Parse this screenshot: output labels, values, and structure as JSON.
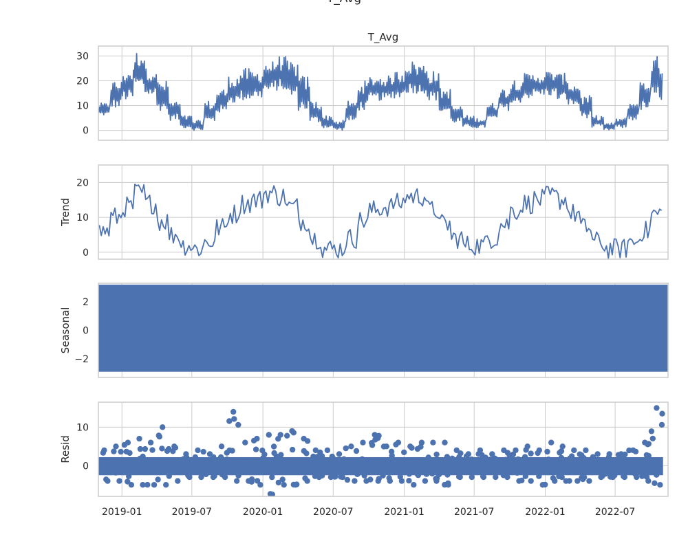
{
  "figure": {
    "suptitle": "T_Avg",
    "axes_title": "T_Avg"
  },
  "chart_data": [
    {
      "type": "line",
      "panel": "observed",
      "title": "T_Avg",
      "ylabel": "",
      "ylim": [
        -4,
        34
      ],
      "yticks": [
        0,
        10,
        20,
        30
      ],
      "color": "#4c72b0",
      "grid": true,
      "series": [
        {
          "values_by_month": [
            [
              "2018-11",
              6,
              11
            ],
            [
              "2018-12",
              9,
              20
            ],
            [
              "2019-01",
              12,
              25
            ],
            [
              "2019-02",
              17,
              32
            ],
            [
              "2019-03",
              14,
              25
            ],
            [
              "2019-04",
              8,
              20
            ],
            [
              "2019-05",
              4,
              12
            ],
            [
              "2019-06",
              1,
              6
            ],
            [
              "2019-07",
              0,
              4
            ],
            [
              "2019-08",
              3,
              12
            ],
            [
              "2019-09",
              7,
              17
            ],
            [
              "2019-10",
              11,
              22
            ],
            [
              "2019-11",
              12,
              25
            ],
            [
              "2019-12",
              13,
              24
            ],
            [
              "2020-01",
              15,
              28
            ],
            [
              "2020-02",
              16,
              30
            ],
            [
              "2020-03",
              13,
              28
            ],
            [
              "2020-04",
              8,
              22
            ],
            [
              "2020-05",
              3,
              12
            ],
            [
              "2020-06",
              1,
              6
            ],
            [
              "2020-07",
              0,
              4
            ],
            [
              "2020-08",
              3,
              12
            ],
            [
              "2020-09",
              8,
              20
            ],
            [
              "2020-10",
              12,
              22
            ],
            [
              "2020-11",
              12,
              22
            ],
            [
              "2020-12",
              13,
              24
            ],
            [
              "2021-01",
              15,
              28
            ],
            [
              "2021-02",
              15,
              27
            ],
            [
              "2021-03",
              12,
              24
            ],
            [
              "2021-04",
              7,
              17
            ],
            [
              "2021-05",
              3,
              10
            ],
            [
              "2021-06",
              1,
              6
            ],
            [
              "2021-07",
              1,
              5
            ],
            [
              "2021-08",
              4,
              11
            ],
            [
              "2021-09",
              8,
              17
            ],
            [
              "2021-10",
              10,
              21
            ],
            [
              "2021-11",
              13,
              23
            ],
            [
              "2021-12",
              14,
              23
            ],
            [
              "2022-01",
              14,
              24
            ],
            [
              "2022-02",
              12,
              23
            ],
            [
              "2022-03",
              10,
              19
            ],
            [
              "2022-04",
              5,
              14
            ],
            [
              "2022-05",
              1,
              6
            ],
            [
              "2022-06",
              0,
              3
            ],
            [
              "2022-07",
              1,
              5
            ],
            [
              "2022-08",
              4,
              12
            ],
            [
              "2022-09",
              8,
              20
            ],
            [
              "2022-10",
              12,
              30
            ]
          ]
        }
      ]
    },
    {
      "type": "line",
      "panel": "trend",
      "ylabel": "Trend",
      "ylim": [
        -2,
        25
      ],
      "yticks": [
        0,
        10,
        20
      ],
      "color": "#4c72b0",
      "grid": true,
      "series": [
        {
          "values_by_month": [
            [
              "2018-11",
              6
            ],
            [
              "2018-12",
              10
            ],
            [
              "2019-01",
              13
            ],
            [
              "2019-02",
              17
            ],
            [
              "2019-03",
              14
            ],
            [
              "2019-04",
              9
            ],
            [
              "2019-05",
              5
            ],
            [
              "2019-06",
              2
            ],
            [
              "2019-07",
              1
            ],
            [
              "2019-08",
              3
            ],
            [
              "2019-09",
              7
            ],
            [
              "2019-10",
              11
            ],
            [
              "2019-11",
              14
            ],
            [
              "2019-12",
              15
            ],
            [
              "2020-01",
              17
            ],
            [
              "2020-02",
              16
            ],
            [
              "2020-03",
              13
            ],
            [
              "2020-04",
              9
            ],
            [
              "2020-05",
              4
            ],
            [
              "2020-06",
              1
            ],
            [
              "2020-07",
              1
            ],
            [
              "2020-08",
              4
            ],
            [
              "2020-09",
              9
            ],
            [
              "2020-10",
              12
            ],
            [
              "2020-11",
              13
            ],
            [
              "2020-12",
              14
            ],
            [
              "2021-01",
              16
            ],
            [
              "2021-02",
              16
            ],
            [
              "2021-03",
              12
            ],
            [
              "2021-04",
              8
            ],
            [
              "2021-05",
              4
            ],
            [
              "2021-06",
              2
            ],
            [
              "2021-07",
              2
            ],
            [
              "2021-08",
              4
            ],
            [
              "2021-09",
              8
            ],
            [
              "2021-10",
              12
            ],
            [
              "2021-11",
              14
            ],
            [
              "2021-12",
              15
            ],
            [
              "2022-01",
              16
            ],
            [
              "2022-02",
              15
            ],
            [
              "2022-03",
              11
            ],
            [
              "2022-04",
              7
            ],
            [
              "2022-05",
              3
            ],
            [
              "2022-06",
              1
            ],
            [
              "2022-07",
              1
            ],
            [
              "2022-08",
              3
            ],
            [
              "2022-09",
              6
            ],
            [
              "2022-10",
              11
            ]
          ]
        }
      ]
    },
    {
      "type": "line",
      "panel": "seasonal",
      "ylabel": "Seasonal",
      "ylim": [
        -3.3,
        3.3
      ],
      "yticks": [
        -2,
        0,
        2
      ],
      "ytick_labels": [
        "−2",
        "0",
        "2"
      ],
      "color": "#4c72b0",
      "grid": true,
      "series": [
        {
          "amplitude_min": -2.9,
          "amplitude_max": 3.2
        }
      ]
    },
    {
      "type": "scatter",
      "panel": "resid",
      "ylabel": "Resid",
      "ylim": [
        -8,
        16.5
      ],
      "yticks": [
        0,
        10
      ],
      "color": "#4c72b0",
      "grid": true,
      "series": [
        {
          "envelope_by_month": [
            [
              "2018-11",
              -4,
              4
            ],
            [
              "2018-12",
              -4,
              5
            ],
            [
              "2019-01",
              -5,
              6
            ],
            [
              "2019-02",
              -5,
              7
            ],
            [
              "2019-03",
              -5,
              6
            ],
            [
              "2019-04",
              -5,
              10
            ],
            [
              "2019-05",
              -4,
              5
            ],
            [
              "2019-06",
              -3,
              3
            ],
            [
              "2019-07",
              -3,
              4
            ],
            [
              "2019-08",
              -3,
              3
            ],
            [
              "2019-09",
              -3,
              5
            ],
            [
              "2019-10",
              -4,
              14
            ],
            [
              "2019-11",
              -4,
              6
            ],
            [
              "2019-12",
              -5,
              7
            ],
            [
              "2020-01",
              -7.5,
              8
            ],
            [
              "2020-02",
              -5,
              8
            ],
            [
              "2020-03",
              -5,
              9
            ],
            [
              "2020-04",
              -4,
              7
            ],
            [
              "2020-05",
              -3,
              4
            ],
            [
              "2020-06",
              -3,
              4
            ],
            [
              "2020-07",
              -3,
              3
            ],
            [
              "2020-08",
              -4,
              5
            ],
            [
              "2020-09",
              -4,
              6
            ],
            [
              "2020-10",
              -4,
              8
            ],
            [
              "2020-11",
              -4,
              5
            ],
            [
              "2020-12",
              -4,
              6
            ],
            [
              "2021-01",
              -5,
              5
            ],
            [
              "2021-02",
              -4,
              6
            ],
            [
              "2021-03",
              -4,
              6
            ],
            [
              "2021-04",
              -5,
              6
            ],
            [
              "2021-05",
              -3,
              4
            ],
            [
              "2021-06",
              -3,
              3
            ],
            [
              "2021-07",
              -3,
              4
            ],
            [
              "2021-08",
              -3,
              3
            ],
            [
              "2021-09",
              -3,
              4
            ],
            [
              "2021-10",
              -4,
              4
            ],
            [
              "2021-11",
              -4,
              5
            ],
            [
              "2021-12",
              -5,
              4
            ],
            [
              "2022-01",
              -4,
              6
            ],
            [
              "2022-02",
              -4,
              5
            ],
            [
              "2022-03",
              -4,
              4
            ],
            [
              "2022-04",
              -4,
              4
            ],
            [
              "2022-05",
              -3,
              3
            ],
            [
              "2022-06",
              -3,
              3
            ],
            [
              "2022-07",
              -3,
              3
            ],
            [
              "2022-08",
              -3,
              4
            ],
            [
              "2022-09",
              -4,
              6
            ],
            [
              "2022-10",
              -5,
              15
            ]
          ]
        }
      ]
    }
  ],
  "x_axis": {
    "start": "2018-11-01",
    "end": "2022-11-15",
    "ticks": [
      {
        "date": "2019-01-01",
        "label": "2019-01"
      },
      {
        "date": "2019-07-01",
        "label": "2019-07"
      },
      {
        "date": "2020-01-01",
        "label": "2020-01"
      },
      {
        "date": "2020-07-01",
        "label": "2020-07"
      },
      {
        "date": "2021-01-01",
        "label": "2021-01"
      },
      {
        "date": "2021-07-01",
        "label": "2021-07"
      },
      {
        "date": "2022-01-01",
        "label": "2022-01"
      },
      {
        "date": "2022-07-01",
        "label": "2022-07"
      }
    ]
  }
}
